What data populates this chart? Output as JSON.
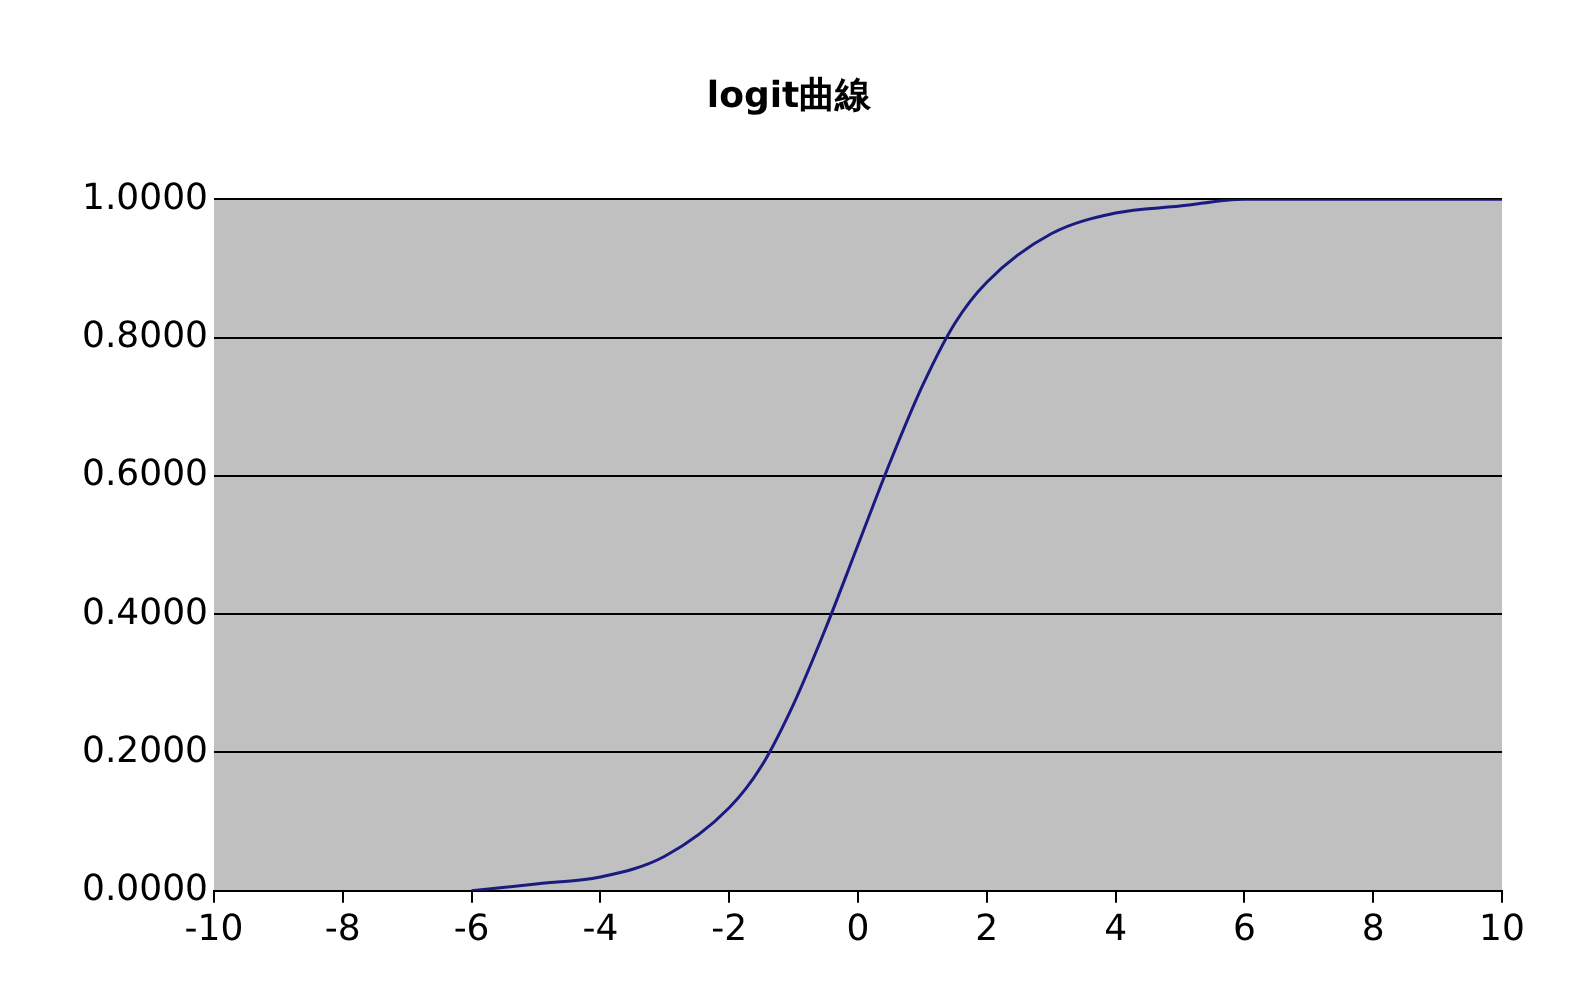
{
  "chart_data": {
    "type": "line",
    "title": "logit曲線",
    "x": [
      -6,
      -5,
      -4,
      -3,
      -2,
      -1.5,
      -1,
      -0.5,
      0,
      0.5,
      1,
      1.5,
      2,
      3,
      4,
      5,
      6,
      7,
      8,
      9,
      10
    ],
    "series": [
      {
        "color": "#1a1a80",
        "values": [
          0.0,
          0.01,
          0.02,
          0.05,
          0.12,
          0.18,
          0.27,
          0.38,
          0.5,
          0.62,
          0.73,
          0.82,
          0.88,
          0.95,
          0.98,
          0.99,
          1.0,
          1.0,
          1.0,
          1.0,
          1.0
        ]
      }
    ],
    "xlim": [
      -10,
      10
    ],
    "xticks": [
      -10,
      -8,
      -6,
      -4,
      -2,
      0,
      2,
      4,
      6,
      8,
      10
    ],
    "ylim": [
      0,
      1
    ],
    "yticks": [
      {
        "value": 0,
        "label": "0.0000"
      },
      {
        "value": 0.2,
        "label": "0.2000"
      },
      {
        "value": 0.4,
        "label": "0.4000"
      },
      {
        "value": 0.6,
        "label": "0.6000"
      },
      {
        "value": 0.8,
        "label": "0.8000"
      },
      {
        "value": 1,
        "label": "1.0000"
      }
    ],
    "grid": "y",
    "legend": false,
    "marker": "none",
    "line_style": "solid"
  }
}
